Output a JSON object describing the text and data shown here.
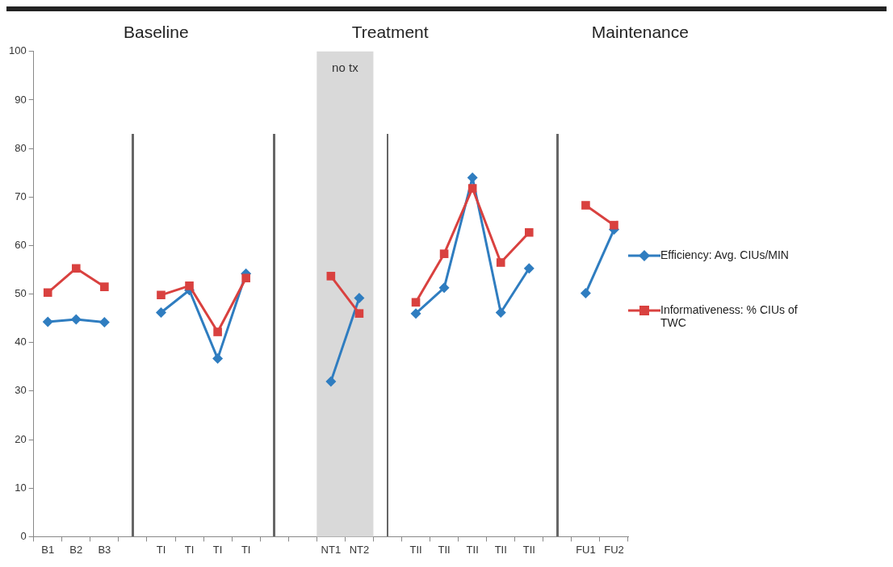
{
  "chart_data": {
    "type": "line",
    "categories": [
      "B1",
      "B2",
      "B3",
      null,
      "TI",
      "TI",
      "TI",
      "TI",
      null,
      null,
      "NT1",
      "NT2",
      null,
      "TII",
      "TII",
      "TII",
      "TII",
      "TII",
      null,
      "FU1",
      "FU2"
    ],
    "series": [
      {
        "name": "Efficiency: Avg. CIUs/MIN",
        "color": "#2f7dc0",
        "marker": "diamond",
        "values": [
          44.3,
          44.8,
          44.2,
          null,
          46.2,
          50.8,
          36.7,
          54.2,
          null,
          null,
          32,
          49.2,
          null,
          46,
          51.3,
          74,
          46.2,
          55.3,
          null,
          50.2,
          63.3
        ]
      },
      {
        "name": "Informativeness: % CIUs of TWC",
        "color": "#d9413f",
        "marker": "square",
        "values": [
          50.3,
          55.3,
          51.5,
          null,
          49.8,
          51.7,
          42.2,
          53.3,
          null,
          null,
          53.7,
          46,
          null,
          48.3,
          58.3,
          71.8,
          56.5,
          62.7,
          null,
          68.3,
          64.2
        ]
      }
    ],
    "ylim": [
      0,
      100
    ],
    "yticks": [
      0,
      10,
      20,
      30,
      40,
      50,
      60,
      70,
      80,
      90,
      100
    ],
    "grid": false,
    "legend": "right",
    "bands": [
      {
        "axis": "x",
        "from": "NT1",
        "to": "NT2",
        "label": "no tx",
        "color": "#d9d9d9"
      }
    ],
    "annotations": [
      "Baseline",
      "Treatment",
      "Maintenance"
    ]
  }
}
